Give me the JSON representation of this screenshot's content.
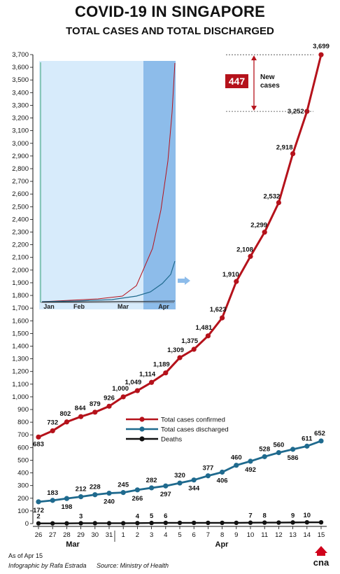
{
  "header": {
    "title": "COVID-19 IN SINGAPORE",
    "subtitle": "TOTAL CASES AND TOTAL DISCHARGED"
  },
  "footer": {
    "as_of": "As of Apr 15",
    "credit": "Infographic by Rafa Estrada",
    "source": "Source: Ministry of Health",
    "logo_text": "cna"
  },
  "callout": {
    "value": "447",
    "label_line1": "New",
    "label_line2": "cases"
  },
  "colors": {
    "confirmed": "#b5121b",
    "discharged": "#1f6a8e",
    "deaths": "#111111",
    "inset_bg": "#d7ebfb",
    "inset_highlight": "#8dbcea"
  },
  "chart_data": {
    "type": "line",
    "title": "COVID-19 IN SINGAPORE",
    "subtitle": "TOTAL CASES AND TOTAL DISCHARGED",
    "ylim": [
      0,
      3700
    ],
    "ytick_step": 100,
    "grid": false,
    "legend_position": "middle-right",
    "categories": [
      "26",
      "27",
      "28",
      "29",
      "30",
      "31",
      "1",
      "2",
      "3",
      "4",
      "5",
      "6",
      "7",
      "8",
      "9",
      "10",
      "11",
      "12",
      "13",
      "14",
      "15"
    ],
    "month_labels": [
      {
        "label": "Mar",
        "from": "26",
        "to": "31"
      },
      {
        "label": "Apr",
        "from": "1",
        "to": "15"
      }
    ],
    "series": [
      {
        "name": "Total cases confirmed",
        "color": "#b5121b",
        "values": [
          683,
          732,
          802,
          844,
          879,
          926,
          1000,
          1049,
          1114,
          1189,
          1309,
          1375,
          1481,
          1623,
          1910,
          2108,
          2299,
          2532,
          2918,
          3252,
          3699
        ],
        "labels": [
          "683",
          "732",
          "802",
          "844",
          "879",
          "926",
          "1,000",
          "1,049",
          "1,114",
          "1,189",
          "1,309",
          "1,375",
          "1,481",
          "1,623",
          "1,910",
          "2,108",
          "2,299",
          "2,532",
          "2,918",
          "3,252",
          "3,699"
        ]
      },
      {
        "name": "Total cases discharged",
        "color": "#1f6a8e",
        "values": [
          172,
          183,
          198,
          212,
          228,
          240,
          245,
          266,
          282,
          297,
          320,
          344,
          377,
          406,
          460,
          492,
          528,
          560,
          586,
          611,
          652
        ],
        "labels": [
          "172",
          "183",
          "198",
          "212",
          "228",
          "240",
          "245",
          "266",
          "282",
          "297",
          "320",
          "344",
          "377",
          "406",
          "460",
          "492",
          "528",
          "560",
          "586",
          "611",
          "652"
        ]
      },
      {
        "name": "Deaths",
        "color": "#111111",
        "values": [
          2,
          2,
          2,
          3,
          3,
          3,
          3,
          4,
          5,
          6,
          6,
          6,
          6,
          6,
          6,
          7,
          8,
          8,
          9,
          10,
          10
        ],
        "point_labels": [
          {
            "index": 0,
            "text": "2"
          },
          {
            "index": 3,
            "text": "3"
          },
          {
            "index": 7,
            "text": "4"
          },
          {
            "index": 8,
            "text": "5"
          },
          {
            "index": 9,
            "text": "6"
          },
          {
            "index": 15,
            "text": "7"
          },
          {
            "index": 16,
            "text": "8"
          },
          {
            "index": 18,
            "text": "9"
          },
          {
            "index": 19,
            "text": "10"
          }
        ]
      }
    ],
    "inset": {
      "type": "line",
      "x_labels": [
        "Jan",
        "Feb",
        "Mar",
        "Apr"
      ],
      "highlighted_period": "Apr",
      "series": [
        "Total cases confirmed",
        "Total cases discharged",
        "Deaths"
      ]
    }
  }
}
